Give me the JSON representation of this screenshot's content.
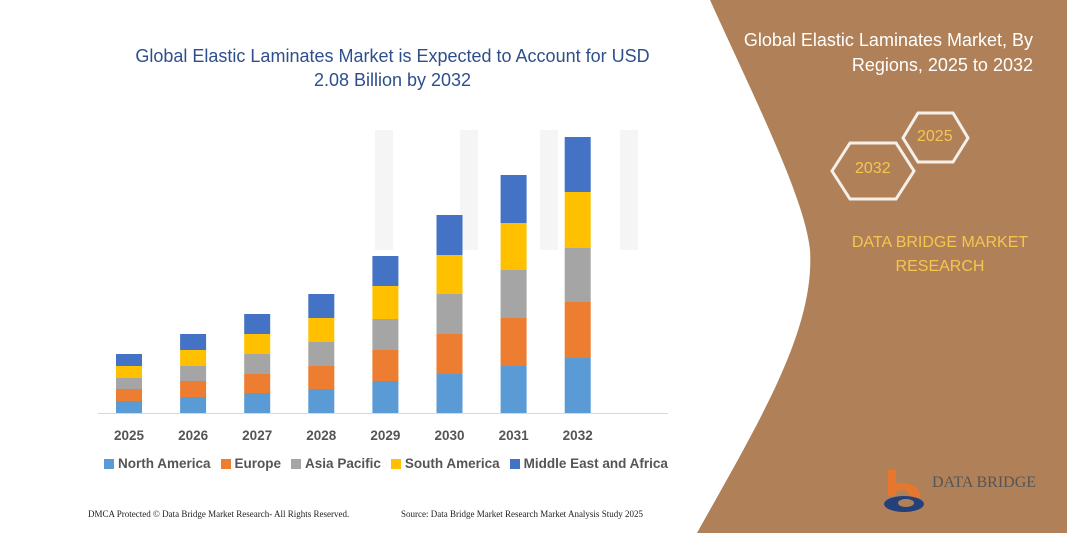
{
  "header": {
    "title": "Global Elastic Laminates Market is Expected to Account for USD 2.08 Billion by 2032"
  },
  "side_panel": {
    "title": "Global Elastic Laminates Market, By Regions, 2025 to 2032",
    "hex_start": "2025",
    "hex_end": "2032",
    "brand": "DATA BRIDGE MARKET RESEARCH",
    "logo_text": "DATA BRIDGE",
    "bg_color": "#b08158"
  },
  "footer": {
    "left": "DMCA Protected © Data Bridge Market Research- All Rights Reserved.",
    "right": "Source: Data Bridge Market Research  Market Analysis Study 2025"
  },
  "chart_data": {
    "type": "bar",
    "stacked": true,
    "title": "Global Elastic Laminates Market is Expected to Account for USD 2.08 Billion by 2032",
    "xlabel": "",
    "ylabel": "",
    "categories": [
      "2025",
      "2026",
      "2027",
      "2028",
      "2029",
      "2030",
      "2031",
      "2032"
    ],
    "legend_position": "bottom",
    "grid": false,
    "series": [
      {
        "name": "North America",
        "color": "#5b9bd5",
        "values": [
          12,
          16,
          20,
          24,
          32,
          39,
          47,
          55
        ]
      },
      {
        "name": "Europe",
        "color": "#ed7d31",
        "values": [
          12,
          16,
          19,
          23,
          31,
          40,
          48,
          56
        ]
      },
      {
        "name": "Asia Pacific",
        "color": "#a5a5a5",
        "values": [
          11,
          15,
          20,
          24,
          31,
          40,
          48,
          54
        ]
      },
      {
        "name": "South America",
        "color": "#ffc000",
        "values": [
          12,
          16,
          20,
          24,
          33,
          39,
          47,
          56
        ]
      },
      {
        "name": "Middle East and Africa",
        "color": "#4472c4",
        "values": [
          12,
          16,
          20,
          24,
          30,
          40,
          48,
          55
        ]
      }
    ]
  }
}
